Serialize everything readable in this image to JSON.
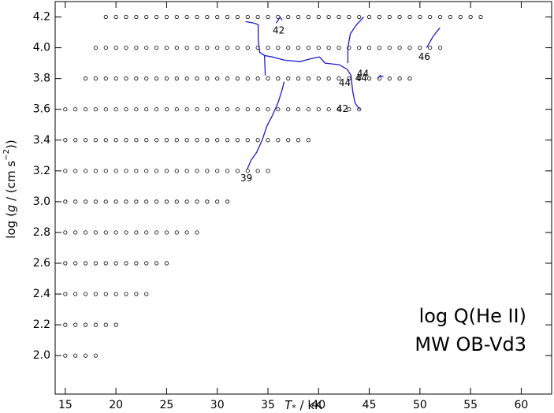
{
  "chart_data": {
    "type": "scatter",
    "xlabel": [
      "T",
      "*",
      " / kK"
    ],
    "ylabel": [
      "log (",
      "g",
      " / (cm s",
      "−2",
      "))"
    ],
    "annotations_big": [
      "log Q(He II)",
      "MW OB-Vd3"
    ],
    "xlim": [
      14,
      63
    ],
    "ylim": [
      1.75,
      4.3
    ],
    "xticks": [
      15,
      20,
      25,
      30,
      35,
      40,
      45,
      50,
      55,
      60
    ],
    "yticks": [
      {
        "value": 2,
        "label": "2.0"
      },
      {
        "value": 2.2,
        "label": "2.2"
      },
      {
        "value": 2.4,
        "label": "2.4"
      },
      {
        "value": 2.6,
        "label": "2.6"
      },
      {
        "value": 2.8,
        "label": "2.8"
      },
      {
        "value": 3,
        "label": "3.0"
      },
      {
        "value": 3.2,
        "label": "3.2"
      },
      {
        "value": 3.4,
        "label": "3.4"
      },
      {
        "value": 3.6,
        "label": "3.6"
      },
      {
        "value": 3.8,
        "label": "3.8"
      },
      {
        "value": 4,
        "label": "4.0"
      },
      {
        "value": 4.2,
        "label": "4.2"
      }
    ],
    "grid_models": [
      {
        "y": 2.0,
        "x": [
          15,
          16,
          17,
          18
        ]
      },
      {
        "y": 2.2,
        "x": [
          15,
          16,
          17,
          18,
          19,
          20
        ]
      },
      {
        "y": 2.4,
        "x": [
          15,
          16,
          17,
          18,
          19,
          20,
          21,
          22,
          23
        ]
      },
      {
        "y": 2.6,
        "x": [
          15,
          16,
          17,
          18,
          19,
          20,
          21,
          22,
          23,
          24,
          25
        ]
      },
      {
        "y": 2.8,
        "x": [
          15,
          16,
          17,
          18,
          19,
          20,
          21,
          22,
          23,
          24,
          25,
          26,
          27,
          28
        ]
      },
      {
        "y": 3.0,
        "x": [
          15,
          16,
          17,
          18,
          19,
          20,
          21,
          22,
          23,
          24,
          25,
          26,
          27,
          28,
          29,
          30,
          31
        ]
      },
      {
        "y": 3.2,
        "x": [
          15,
          16,
          17,
          18,
          19,
          20,
          21,
          22,
          23,
          24,
          25,
          26,
          27,
          28,
          29,
          30,
          31,
          32,
          33,
          34,
          35
        ]
      },
      {
        "y": 3.4,
        "x": [
          15,
          16,
          17,
          18,
          19,
          20,
          21,
          22,
          23,
          24,
          25,
          26,
          27,
          28,
          29,
          30,
          31,
          32,
          33,
          34,
          35,
          36,
          37,
          38,
          39
        ]
      },
      {
        "y": 3.6,
        "x": [
          15,
          16,
          17,
          18,
          19,
          20,
          21,
          22,
          23,
          24,
          25,
          26,
          27,
          28,
          29,
          30,
          31,
          32,
          33,
          34,
          35,
          36,
          37,
          38,
          39,
          40,
          41,
          42,
          43,
          44
        ]
      },
      {
        "y": 3.8,
        "x": [
          17,
          18,
          19,
          20,
          21,
          22,
          23,
          24,
          25,
          26,
          27,
          28,
          29,
          30,
          31,
          32,
          33,
          34,
          35,
          36,
          37,
          38,
          39,
          40,
          41,
          42,
          43,
          44,
          45,
          46,
          47,
          48,
          49
        ]
      },
      {
        "y": 4.0,
        "x": [
          18,
          19,
          20,
          21,
          22,
          23,
          24,
          25,
          26,
          27,
          28,
          29,
          30,
          31,
          32,
          33,
          34,
          35,
          36,
          37,
          38,
          39,
          40,
          41,
          42,
          43,
          44,
          45,
          46,
          47,
          48,
          49,
          50,
          51,
          52
        ]
      },
      {
        "y": 4.2,
        "x": [
          19,
          20,
          21,
          22,
          23,
          24,
          25,
          26,
          27,
          28,
          29,
          30,
          31,
          32,
          33,
          34,
          35,
          36,
          37,
          38,
          39,
          40,
          41,
          42,
          43,
          44,
          45,
          46,
          47,
          48,
          49,
          50,
          51,
          52,
          53,
          54,
          55,
          56
        ]
      }
    ],
    "contour_color": "#1a1acc",
    "contours": [
      {
        "x": [
          32.95,
          33.34,
          33.88,
          34.43,
          34.89,
          35.44,
          35.98,
          36.37,
          36.6
        ],
        "y": [
          3.21,
          3.27,
          3.32,
          3.4,
          3.49,
          3.56,
          3.64,
          3.72,
          3.78
        ]
      },
      {
        "x": [
          32.79,
          33.65,
          34.04,
          34.04,
          34.19,
          34.66,
          35.44,
          36.6,
          38.15,
          39.32,
          40.1,
          40.64,
          42.04,
          42.82,
          43.2,
          43.36,
          43.6,
          44.06
        ],
        "y": [
          4.17,
          4.16,
          4.15,
          4.05,
          3.97,
          3.95,
          3.94,
          3.92,
          3.91,
          3.93,
          3.94,
          3.9,
          3.89,
          3.86,
          3.82,
          3.72,
          3.64,
          3.6
        ]
      },
      {
        "x": [
          34.66,
          34.74
        ],
        "y": [
          3.95,
          3.82
        ]
      },
      {
        "x": [
          44.45,
          43.75,
          43.13,
          42.89,
          42.89
        ],
        "y": [
          4.2,
          4.15,
          4.09,
          4.0,
          3.9
        ]
      },
      {
        "x": [
          35.82,
          36.2,
          36.4
        ],
        "y": [
          4.16,
          4.2,
          4.18
        ]
      },
      {
        "x": [
          45.85,
          46.08,
          46.39
        ],
        "y": [
          3.8,
          3.82,
          3.81
        ]
      },
      {
        "x": [
          50.66,
          51.36,
          51.98
        ],
        "y": [
          4.0,
          4.08,
          4.13
        ]
      }
    ],
    "contour_labels": [
      {
        "text": "39",
        "x": 32.87,
        "y": 3.15
      },
      {
        "text": "42",
        "x": 36.06,
        "y": 4.11
      },
      {
        "text": "42",
        "x": 42.35,
        "y": 3.6
      },
      {
        "text": "44",
        "x": 42.58,
        "y": 3.77
      },
      {
        "text": "44",
        "x": 44.2,
        "y": 3.8
      },
      {
        "text": "44",
        "x": 44.37,
        "y": 3.83
      },
      {
        "text": "46",
        "x": 50.43,
        "y": 3.94
      }
    ]
  }
}
